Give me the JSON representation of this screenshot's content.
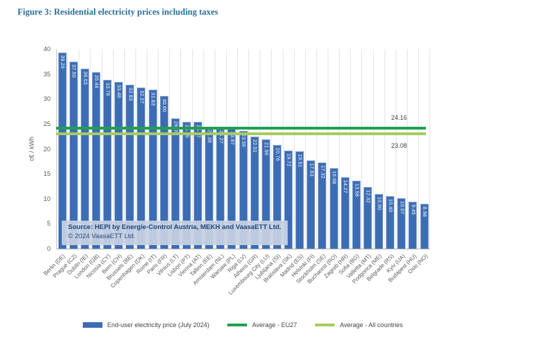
{
  "figure_title": "Figure 3: Residential electricity prices including taxes",
  "chart_data": {
    "type": "bar",
    "title": "Figure 3: Residential electricity prices including taxes",
    "xlabel": "",
    "ylabel": "c€ / kWh",
    "ylim": [
      0,
      40
    ],
    "yticks": [
      0,
      5,
      10,
      15,
      20,
      25,
      30,
      35,
      40
    ],
    "grid": "vertical category gridlines only",
    "legend_position": "bottom",
    "series_name": "End-user electricity price (July 2024)",
    "categories": [
      "Berlin (DE)",
      "Prague (CZ)",
      "Dublin (IE)",
      "London (GB)",
      "Nicosia (CY)",
      "Bern (CH)",
      "Brussels (BE)",
      "Copenhagen (DK)",
      "Rome (IT)",
      "Paris (FR)",
      "Vilnius (LT)",
      "Lisbon (PT)",
      "Vienna (AT)",
      "Tallinn (EE)",
      "Amsterdam (NL)",
      "Warsaw (PL)",
      "Riga (LV)",
      "Athens (GR)",
      "Luxembourg City (LU)",
      "Ljubljana (SI)",
      "Bratislava (SK)",
      "Madrid (ES)",
      "Helsinki (FI)",
      "Stockholm (SE)",
      "Bucharest (RO)",
      "Zagreb (HR)",
      "Sofia (BG)",
      "Valletta (MT)",
      "Podgorica (ME)",
      "Belgrade (RS)",
      "Kyiv (UA)",
      "Budapest (HU)",
      "Oslo (NO)"
    ],
    "values": [
      39.29,
      37.5,
      36.03,
      35.44,
      33.78,
      33.48,
      32.83,
      32.27,
      31.83,
      30.6,
      26.09,
      25.45,
      25.37,
      24.38,
      24.27,
      23.97,
      23.56,
      22.51,
      21.96,
      20.76,
      19.72,
      19.51,
      17.63,
      17.32,
      16.08,
      14.27,
      13.58,
      12.32,
      10.9,
      10.49,
      10.07,
      9.45,
      8.98
    ],
    "value_labels": [
      "39.29",
      "37.50",
      "36.03",
      "35.44",
      "33.78",
      "33.48",
      "32.83",
      "32.27",
      "31.83",
      "30.60",
      "26.09",
      "25.45",
      "25.37",
      "24.38",
      "24.27",
      "23.97",
      "23.56",
      "22.51",
      "21.96",
      "20.76",
      "19.72",
      "19.51",
      "17.63",
      "17.32",
      "16.08",
      "14.27",
      "13.58",
      "12.32",
      "10.90",
      "10.49",
      "10.07",
      "9.45",
      "8.98"
    ],
    "reference_lines": [
      {
        "name": "Average - EU27",
        "value": 24.16,
        "label": "24.16",
        "color": "#1FA04F"
      },
      {
        "name": "Average - All countries",
        "value": 23.08,
        "label": "23.08",
        "color": "#A7CB60"
      }
    ]
  },
  "source_box": {
    "line1": "Source: HEPI by Energie-Control Austria, MEKH and VaasaETT Ltd.",
    "line2": "© 2024 VaasaETT Ltd."
  },
  "colors": {
    "bar": "#3C6DB4",
    "bar_border": "#8AA7D4",
    "avg_eu27": "#1FA04F",
    "avg_all_countries": "#A7CB60",
    "title_text": "#2C6E9B",
    "axis_text": "#595959",
    "source_box_bg": "#C7D1E2",
    "source_box_text": "#1E4679"
  }
}
